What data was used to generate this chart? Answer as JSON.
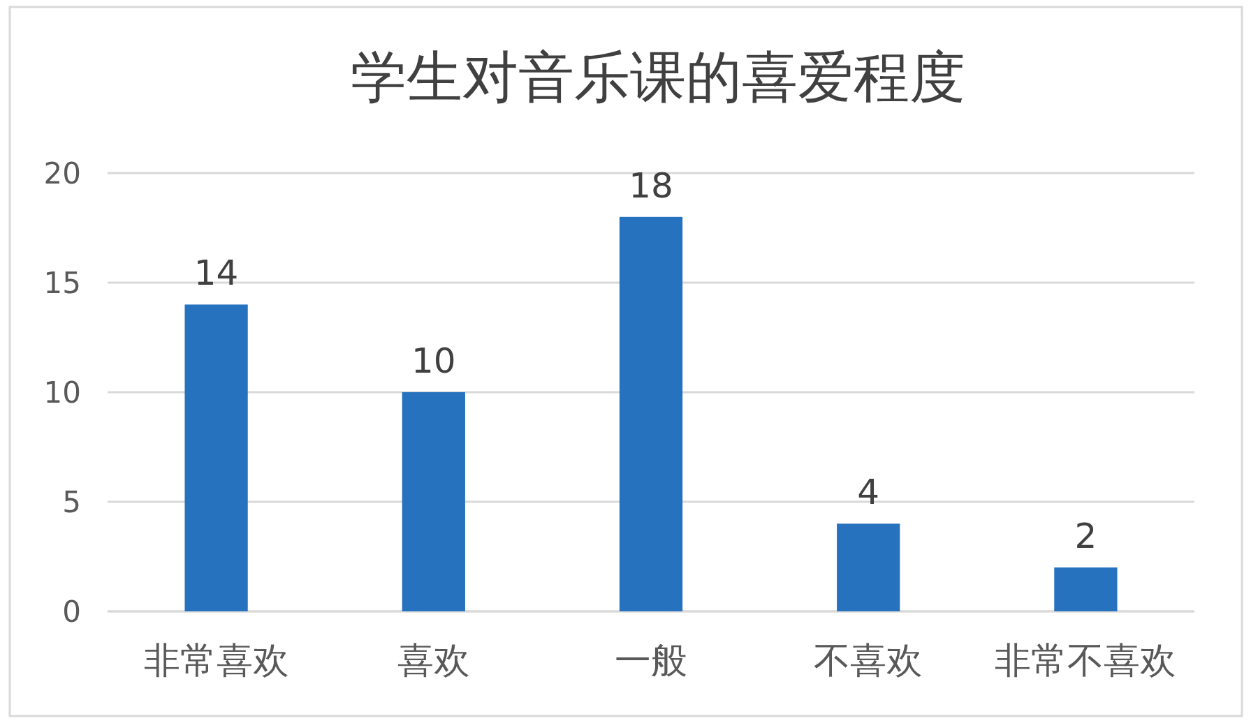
{
  "chart_data": {
    "type": "bar",
    "title": "学生对音乐课的喜爱程度",
    "categories": [
      "非常喜欢",
      "喜欢",
      "一般",
      "不喜欢",
      "非常不喜欢"
    ],
    "values": [
      14,
      10,
      18,
      4,
      2
    ],
    "color": "#2672be",
    "ylim": [
      0,
      20
    ],
    "yticks": [
      0,
      5,
      10,
      15,
      20
    ],
    "grid": "y",
    "data_labels": true
  }
}
